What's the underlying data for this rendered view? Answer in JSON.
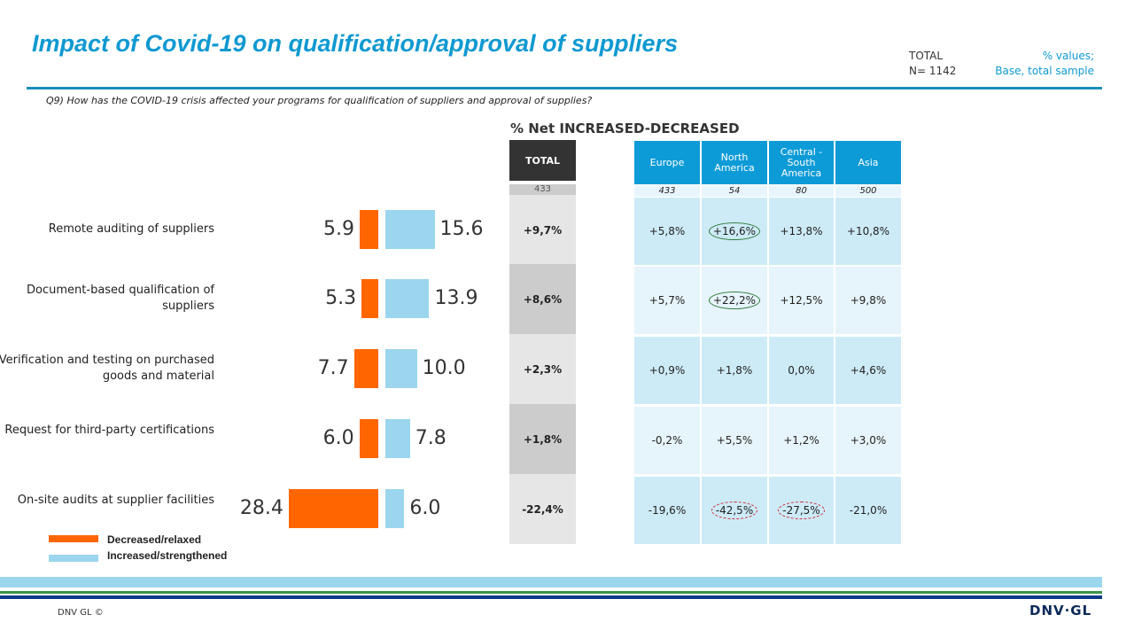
{
  "header": {
    "title": "Impact of Covid-19 on qualification/approval of suppliers",
    "total_label": "TOTAL",
    "n_label": "N= 1142",
    "note1": "% values;",
    "note2": "Base, total sample",
    "question": "Q9) How has the COVID-19  crisis affected your programs for qualification of suppliers and approval of supplies?"
  },
  "chart_data": {
    "type": "bar",
    "orientation": "horizontal-diverging",
    "categories": [
      "Remote auditing of suppliers",
      "Document-based qualification  of suppliers",
      "Verification and testing on purchased goods and material",
      "Request for third-party certifications",
      "On-site audits at supplier facilities"
    ],
    "series": [
      {
        "name": "Decreased/relaxed",
        "color": "#ff6600",
        "values": [
          5.9,
          5.3,
          7.7,
          6.0,
          28.4
        ]
      },
      {
        "name": "Increased/strengthened",
        "color": "#9bd6ee",
        "values": [
          15.6,
          13.9,
          10.0,
          7.8,
          6.0
        ]
      }
    ],
    "value_labels": {
      "decreased": [
        "5.9",
        "5.3",
        "7.7",
        "6.0",
        "28.4"
      ],
      "increased": [
        "15.6",
        "13.9",
        "10.0",
        "7.8",
        "6.0"
      ]
    },
    "legend_placement": "bottom-left"
  },
  "net_table": {
    "title": "% Net  INCREASED-DECREASED",
    "total_header": "TOTAL",
    "total_base": "433",
    "total_values": [
      "+9,7%",
      "+8,6%",
      "+2,3%",
      "+1,8%",
      "-22,4%"
    ],
    "regions": [
      {
        "name": "Europe",
        "base": "433",
        "values": [
          "+5,8%",
          "+5,7%",
          "+0,9%",
          "-0,2%",
          "-19,6%"
        ]
      },
      {
        "name": "North America",
        "base": "54",
        "values": [
          "+16,6%",
          "+22,2%",
          "+1,8%",
          "+5,5%",
          "-42,5%"
        ]
      },
      {
        "name": "Central - South America",
        "base": "80",
        "values": [
          "+13,8%",
          "+12,5%",
          "0,0%",
          "+1,2%",
          "-27,5%"
        ]
      },
      {
        "name": "Asia",
        "base": "500",
        "values": [
          "+10,8%",
          "+9,8%",
          "+4,6%",
          "+3,0%",
          "-21,0%"
        ]
      }
    ],
    "highlights": {
      "green": [
        [
          1,
          0
        ],
        [
          1,
          1
        ]
      ],
      "red": [
        [
          1,
          4
        ],
        [
          2,
          4
        ]
      ]
    }
  },
  "footer": {
    "copyright": "DNV GL ©",
    "logo": "DNV·GL"
  }
}
